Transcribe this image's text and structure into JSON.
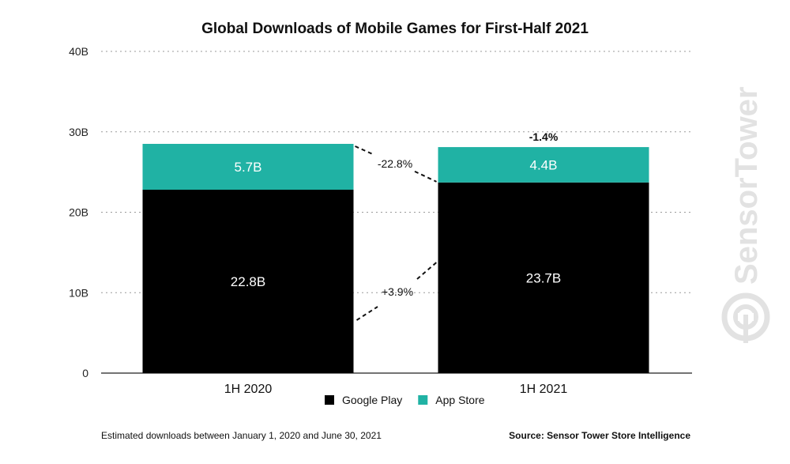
{
  "chart_data": {
    "type": "bar",
    "stacked": true,
    "title": "Global Downloads of Mobile Games for First-Half 2021",
    "categories": [
      "1H 2020",
      "1H 2021"
    ],
    "series": [
      {
        "name": "Google Play",
        "values": [
          22.8,
          23.7
        ],
        "labels": [
          "22.8B",
          "23.7B"
        ],
        "color": "#000000"
      },
      {
        "name": "App Store",
        "values": [
          5.7,
          4.4
        ],
        "labels": [
          "5.7B",
          "4.4B"
        ],
        "color": "#20b2a4"
      }
    ],
    "yticks": [
      0,
      10,
      20,
      30,
      40
    ],
    "ytick_labels": [
      "0",
      "10B",
      "20B",
      "30B",
      "40B"
    ],
    "ylim": [
      0,
      40
    ],
    "grid": true,
    "legend": "bottom",
    "annotations": {
      "app_store_change": "-22.8%",
      "google_play_change": "+3.9%",
      "total_change": "-1.4%"
    }
  },
  "footer": {
    "note": "Estimated downloads between January 1, 2020 and June 30, 2021",
    "source": "Source: Sensor Tower Store Intelligence"
  },
  "watermark": {
    "text": "SensorTower",
    "color": "#e2e2e2"
  }
}
